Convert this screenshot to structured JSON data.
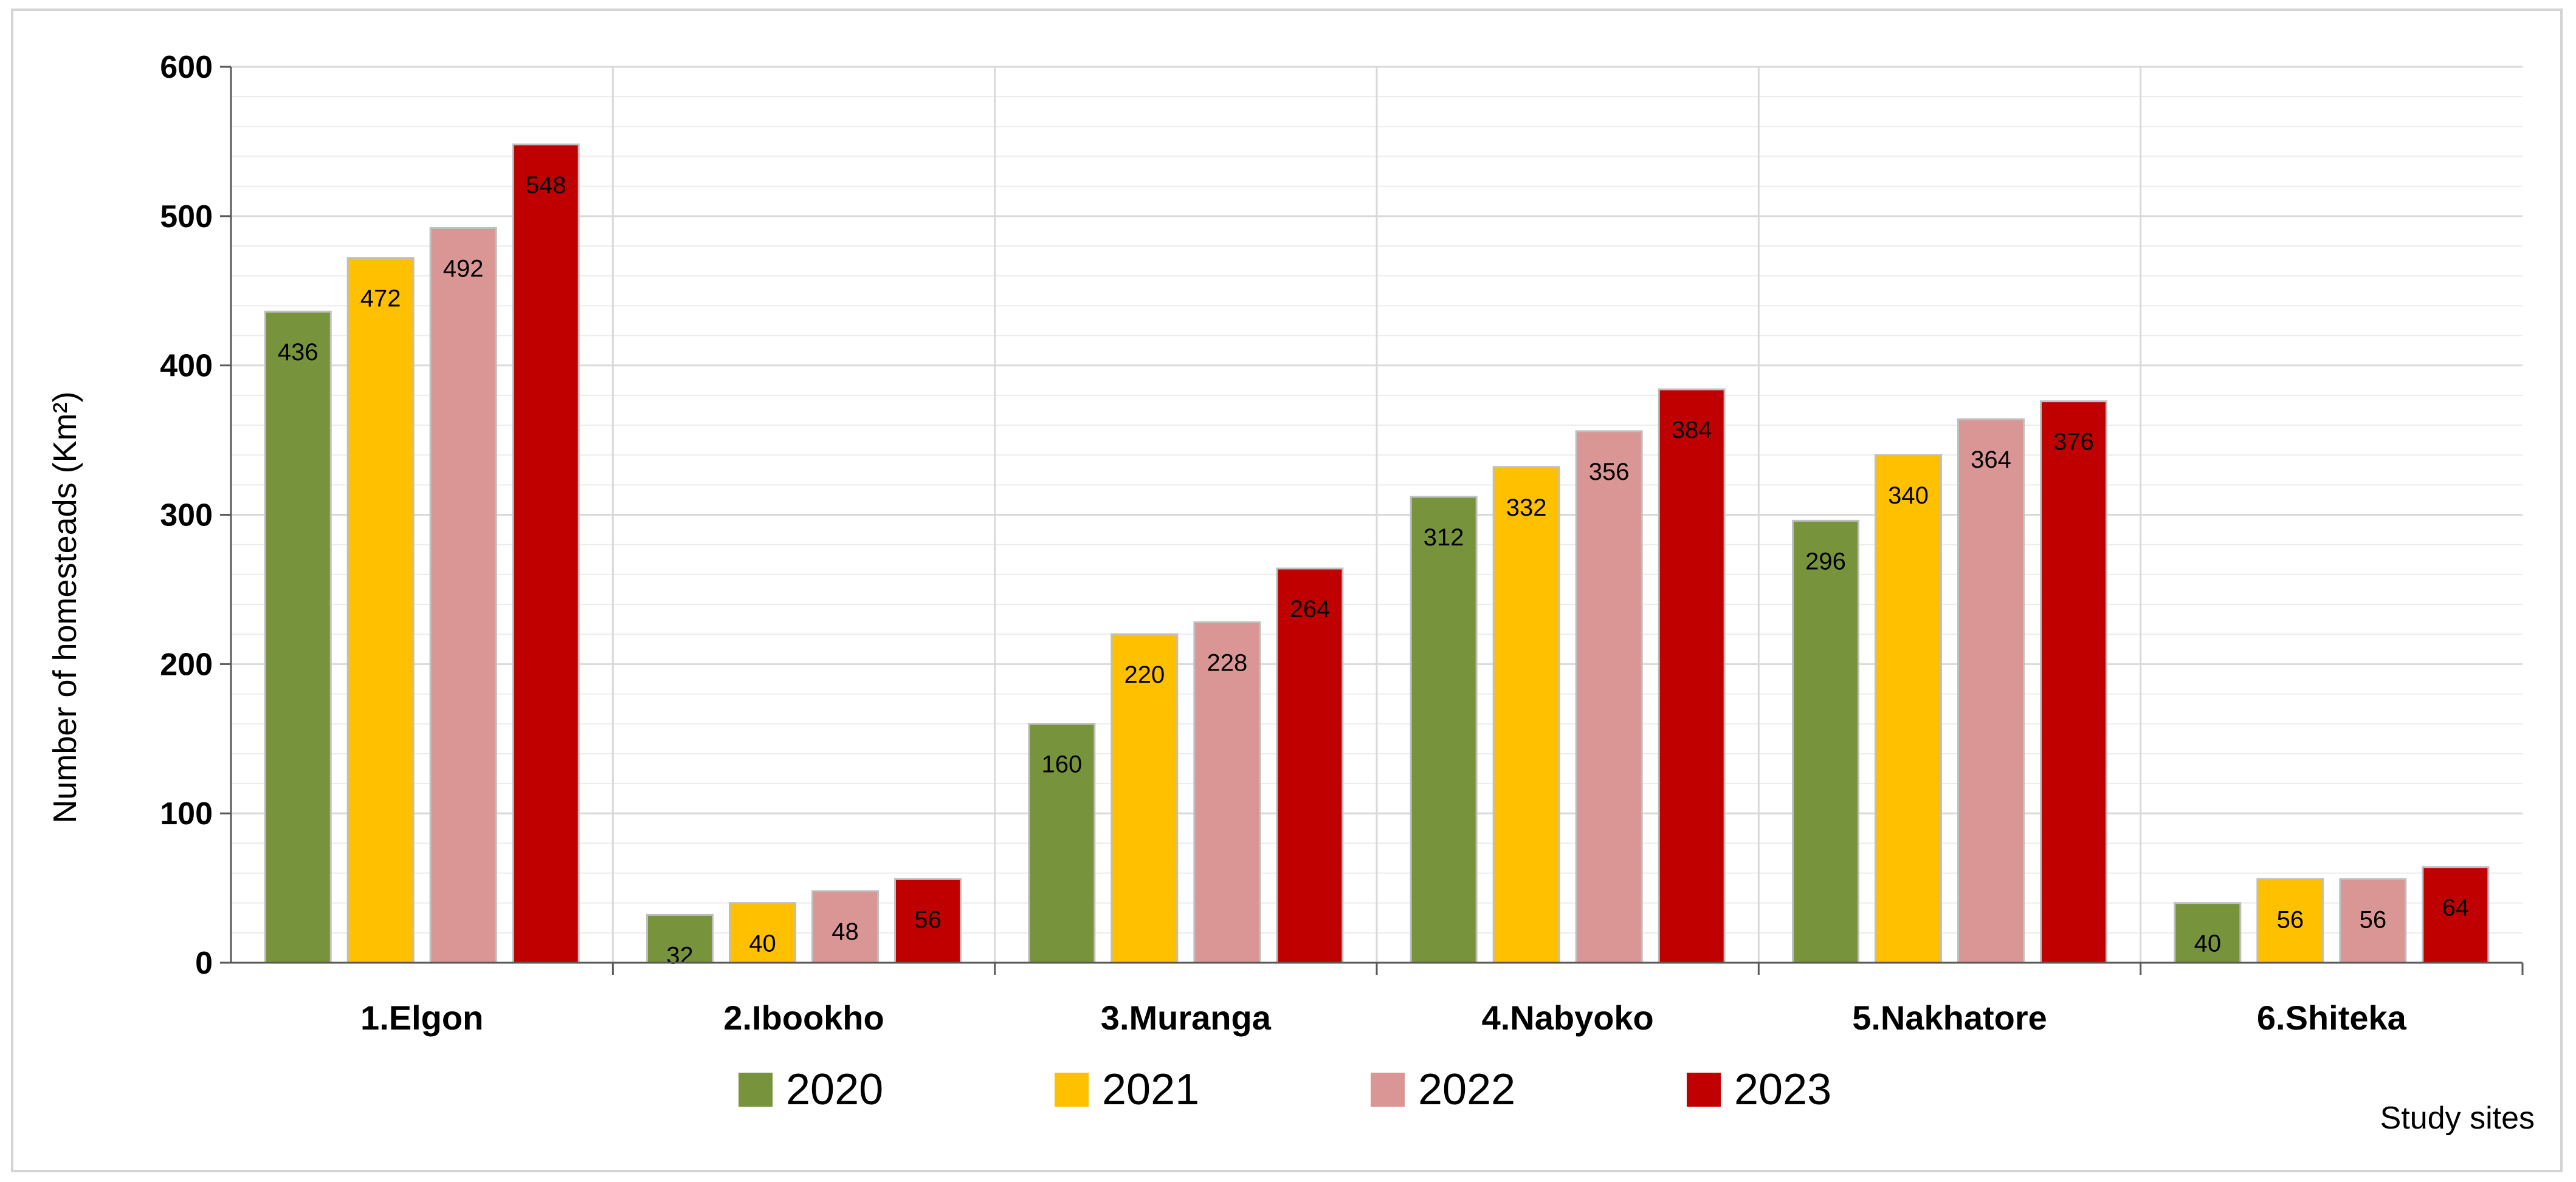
{
  "chart_data": {
    "type": "bar",
    "title": "",
    "xlabel": "Study sites",
    "ylabel": "Number of homesteads (Km²)",
    "ylim": [
      0,
      600
    ],
    "yticks": [
      0,
      100,
      200,
      300,
      400,
      500,
      600
    ],
    "categories": [
      "1.Elgon",
      "2.Ibookho",
      "3.Muranga",
      "4.Nabyoko",
      "5.Nakhatore",
      "6.Shiteka"
    ],
    "series": [
      {
        "name": "2020",
        "color": "#77933c",
        "values": [
          436,
          32,
          160,
          312,
          296,
          40
        ]
      },
      {
        "name": "2021",
        "color": "#ffc000",
        "values": [
          472,
          40,
          220,
          332,
          340,
          56
        ]
      },
      {
        "name": "2022",
        "color": "#d99694",
        "values": [
          492,
          48,
          228,
          356,
          364,
          56
        ]
      },
      {
        "name": "2023",
        "color": "#c00000",
        "values": [
          548,
          56,
          264,
          384,
          376,
          64
        ]
      }
    ],
    "legend_position": "bottom",
    "grid": true
  }
}
